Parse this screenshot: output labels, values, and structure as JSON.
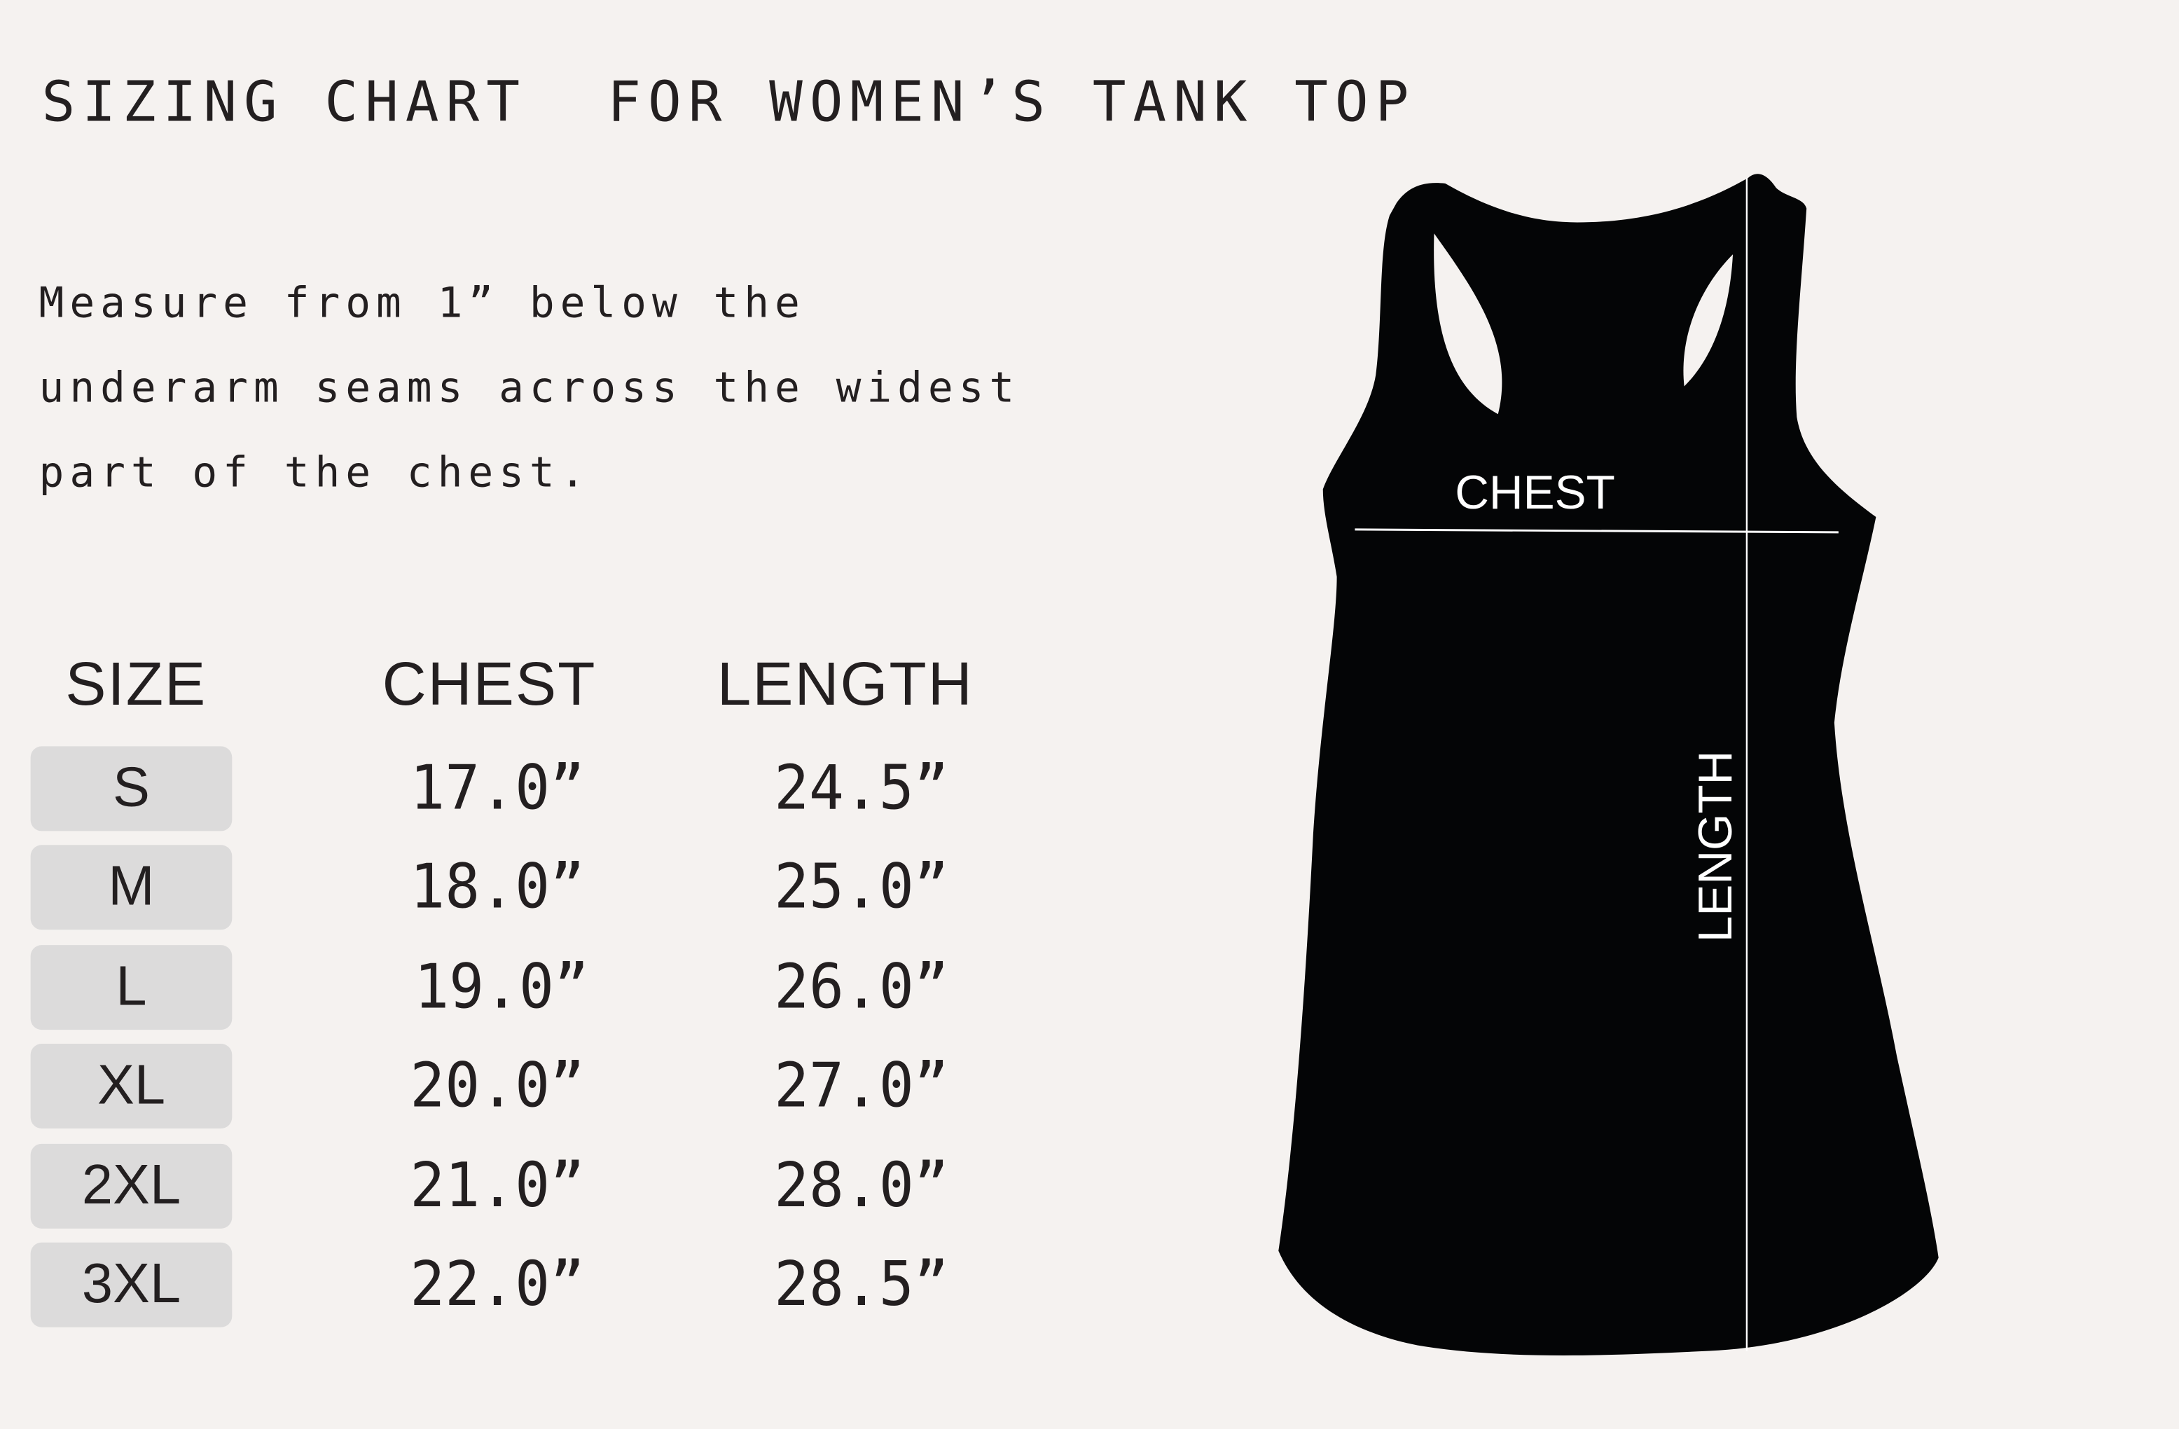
{
  "title": "SIZING CHART  FOR WOMEN’S TANK TOP",
  "instructions": [
    "Measure from 1” below the",
    "underarm seams across the widest",
    "part of the chest."
  ],
  "table": {
    "headers": {
      "size": "SIZE",
      "chest": "CHEST",
      "length": "LENGTH"
    },
    "rows": [
      {
        "size": "S",
        "chest": "17.0”",
        "length": "24.5”"
      },
      {
        "size": "M",
        "chest": "18.0”",
        "length": "25.0”"
      },
      {
        "size": "L",
        "chest": "19.0”",
        "length": "26.0”"
      },
      {
        "size": "XL",
        "chest": "20.0”",
        "length": "27.0”"
      },
      {
        "size": "2XL",
        "chest": "21.0”",
        "length": "28.0”"
      },
      {
        "size": "3XL",
        "chest": "22.0”",
        "length": "28.5”"
      }
    ]
  },
  "diagram": {
    "chest_label": "CHEST",
    "length_label": "LENGTH"
  },
  "colors": {
    "background": "#f5f2f0",
    "size_box": "#dcdbdb",
    "garment": "#040506",
    "text": "#231f20"
  }
}
